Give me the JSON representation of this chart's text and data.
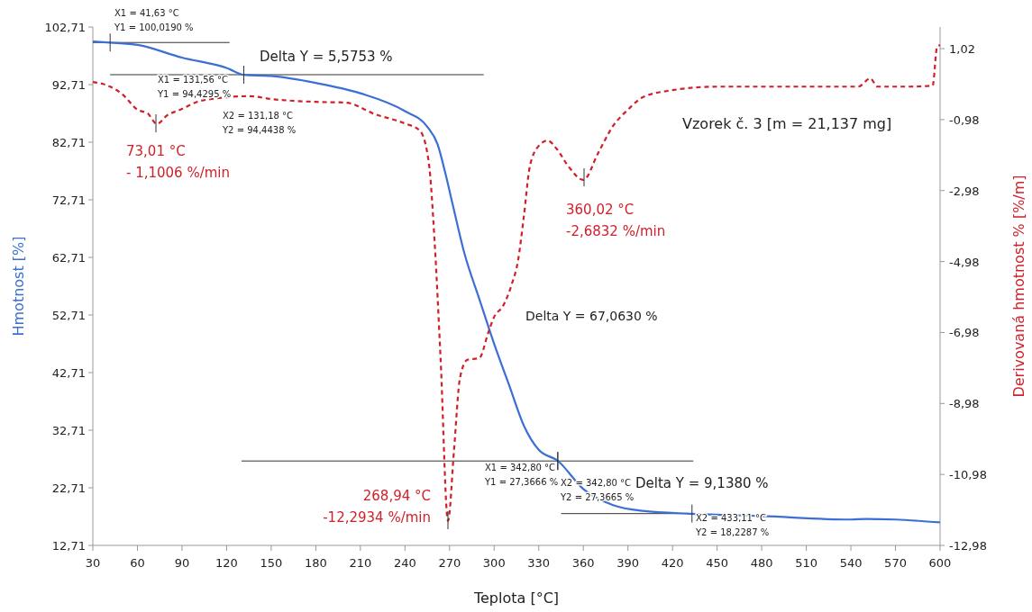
{
  "chart_data": {
    "type": "line",
    "xlabel": "Teplota [°C]",
    "ylabel": "Hmotnost [%]",
    "y2label": "Derivovaná hmotnost % [%/m]",
    "xlim": [
      30,
      600
    ],
    "xticks": [
      30,
      60,
      90,
      120,
      150,
      180,
      210,
      240,
      270,
      300,
      330,
      360,
      390,
      420,
      450,
      480,
      510,
      540,
      570,
      600
    ],
    "ylim": [
      12.71,
      102.71
    ],
    "yticks": [
      {
        "value": 12.71,
        "label": "12,71"
      },
      {
        "value": 22.71,
        "label": "22,71"
      },
      {
        "value": 32.71,
        "label": "32,71"
      },
      {
        "value": 42.71,
        "label": "42,71"
      },
      {
        "value": 52.71,
        "label": "52,71"
      },
      {
        "value": 62.71,
        "label": "62,71"
      },
      {
        "value": 72.71,
        "label": "72,71"
      },
      {
        "value": 82.71,
        "label": "82,71"
      },
      {
        "value": 92.71,
        "label": "92,71"
      },
      {
        "value": 102.71,
        "label": "102,71"
      }
    ],
    "y2lim": [
      -12.98,
      1.63
    ],
    "y2ticks": [
      {
        "value": -12.98,
        "label": "-12,98"
      },
      {
        "value": -10.98,
        "label": "-10,98"
      },
      {
        "value": -8.98,
        "label": "-8,98"
      },
      {
        "value": -6.98,
        "label": "-6,98"
      },
      {
        "value": -4.98,
        "label": "-4,98"
      },
      {
        "value": -2.98,
        "label": "-2,98"
      },
      {
        "value": -0.98,
        "label": "-0,98"
      },
      {
        "value": 1.02,
        "label": "1,02"
      }
    ],
    "grid": false,
    "ref_lines": [
      {
        "axis": "y",
        "value": 100.019,
        "color": "#333333"
      },
      {
        "axis": "y",
        "value": 94.4295,
        "color": "#333333"
      },
      {
        "axis": "y",
        "value": 27.3666,
        "color": "#333333"
      },
      {
        "axis": "y",
        "value": 18.2287,
        "color": "#333333"
      }
    ],
    "series": [
      {
        "color": "#3b6fd4",
        "line_style": "solid",
        "x": [
          30,
          41.63,
          60,
          90,
          120,
          131.56,
          150,
          180,
          210,
          240,
          255,
          262,
          267,
          272,
          280,
          290,
          300,
          310,
          320,
          330,
          342.8,
          360,
          380,
          400,
          433.11,
          480,
          540,
          550,
          570,
          600
        ],
        "values": [
          100.2,
          100.0,
          99.6,
          97.4,
          95.6,
          94.4,
          94.2,
          93.0,
          91.2,
          88.1,
          85.4,
          82.3,
          77.5,
          72.0,
          63.4,
          55.5,
          47.7,
          40.6,
          33.5,
          29.3,
          27.4,
          22.5,
          19.7,
          18.7,
          18.2,
          17.8,
          17.2,
          17.3,
          17.2,
          16.7
        ]
      },
      {
        "color": "#d0202a",
        "line_style": "dashed",
        "axis": "y2",
        "x": [
          30,
          40,
          50,
          60,
          67,
          73.01,
          80,
          90,
          100,
          110,
          120,
          135,
          150,
          180,
          200,
          220,
          240,
          250,
          256,
          260,
          264,
          268.94,
          273,
          277,
          282,
          290,
          296,
          300,
          306,
          312,
          316,
          320,
          324,
          330,
          336,
          342,
          350,
          360.02,
          370,
          380,
          390,
          400,
          420,
          450,
          500,
          545,
          553,
          558,
          580,
          595,
          598,
          600
        ],
        "values": [
          0.08,
          -0.02,
          -0.27,
          -0.7,
          -0.81,
          -1.1,
          -0.86,
          -0.68,
          -0.48,
          -0.4,
          -0.35,
          -0.32,
          -0.4,
          -0.48,
          -0.5,
          -0.83,
          -1.09,
          -1.29,
          -2.18,
          -4.46,
          -7.75,
          -12.29,
          -10.29,
          -8.26,
          -7.75,
          -7.7,
          -6.99,
          -6.54,
          -6.23,
          -5.6,
          -4.97,
          -3.7,
          -2.3,
          -1.72,
          -1.57,
          -1.8,
          -2.3,
          -2.68,
          -1.92,
          -1.16,
          -0.7,
          -0.35,
          -0.15,
          -0.05,
          -0.05,
          -0.05,
          0.18,
          -0.05,
          -0.05,
          -0.02,
          1.07,
          1.12
        ]
      }
    ],
    "annotations": [
      {
        "text": "X1 = 41,63 °C\nY1 = 100,0190 %",
        "x": 41.63,
        "y": 100.019
      },
      {
        "text": "X1 = 131,56 °C\nY1 = 94,4295 %",
        "x": 131.56,
        "y": 94.4295
      },
      "X2 = 131,18 °C\nY2 = 94,4438 %",
      "Delta Y = 5,5753 %",
      "73,01 °C\n- 1,1006 %/min",
      "268,94 °C\n-12,2934 %/min",
      "360,02 °C\n-2,6832 %/min",
      "Delta Y = 67,0630 %",
      {
        "text": "X1 = 342,80 °C\nY1 = 27,3666 %",
        "x": 342.8,
        "y": 27.3666
      },
      {
        "text": "X2 = 342,80 °C\nY2 = 27,3665 %",
        "x": 342.8,
        "y": 27.3665
      },
      "Delta Y = 9,1380 %",
      {
        "text": "X2 = 433,11 °C\nY2 = 18,2287 %",
        "x": 433.11,
        "y": 18.2287
      },
      "Vzorek č. 3 [m = 21,137 mg]"
    ]
  }
}
